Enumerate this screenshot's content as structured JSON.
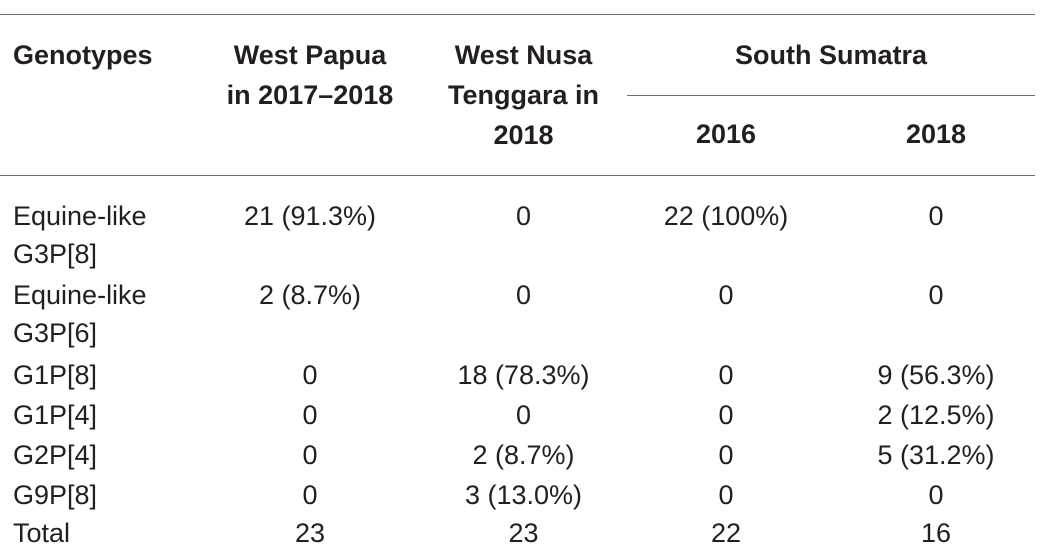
{
  "table": {
    "headers": {
      "genotypes": "Genotypes",
      "west_papua": [
        "West Papua",
        "in 2017–2018"
      ],
      "west_nusa": [
        "West Nusa",
        "Tenggara in",
        "2018"
      ],
      "south_sumatra": "South Sumatra",
      "year_2016": "2016",
      "year_2018": "2018"
    },
    "rows": [
      {
        "genotype": [
          "Equine-like",
          "G3P[8]"
        ],
        "values": [
          "21 (91.3%)",
          "0",
          "22 (100%)",
          "0"
        ]
      },
      {
        "genotype": [
          "Equine-like",
          "G3P[6]"
        ],
        "values": [
          "2 (8.7%)",
          "0",
          "0",
          "0"
        ]
      },
      {
        "genotype": [
          "G1P[8]"
        ],
        "values": [
          "0",
          "18 (78.3%)",
          "0",
          "9 (56.3%)"
        ]
      },
      {
        "genotype": [
          "G1P[4]"
        ],
        "values": [
          "0",
          "0",
          "0",
          "2 (12.5%)"
        ]
      },
      {
        "genotype": [
          "G2P[4]"
        ],
        "values": [
          "0",
          "2 (8.7%)",
          "0",
          "5 (31.2%)"
        ]
      },
      {
        "genotype": [
          "G9P[8]"
        ],
        "values": [
          "0",
          "3 (13.0%)",
          "0",
          "0"
        ]
      },
      {
        "genotype": [
          "Total"
        ],
        "values": [
          "23",
          "23",
          "22",
          "16"
        ]
      }
    ]
  }
}
